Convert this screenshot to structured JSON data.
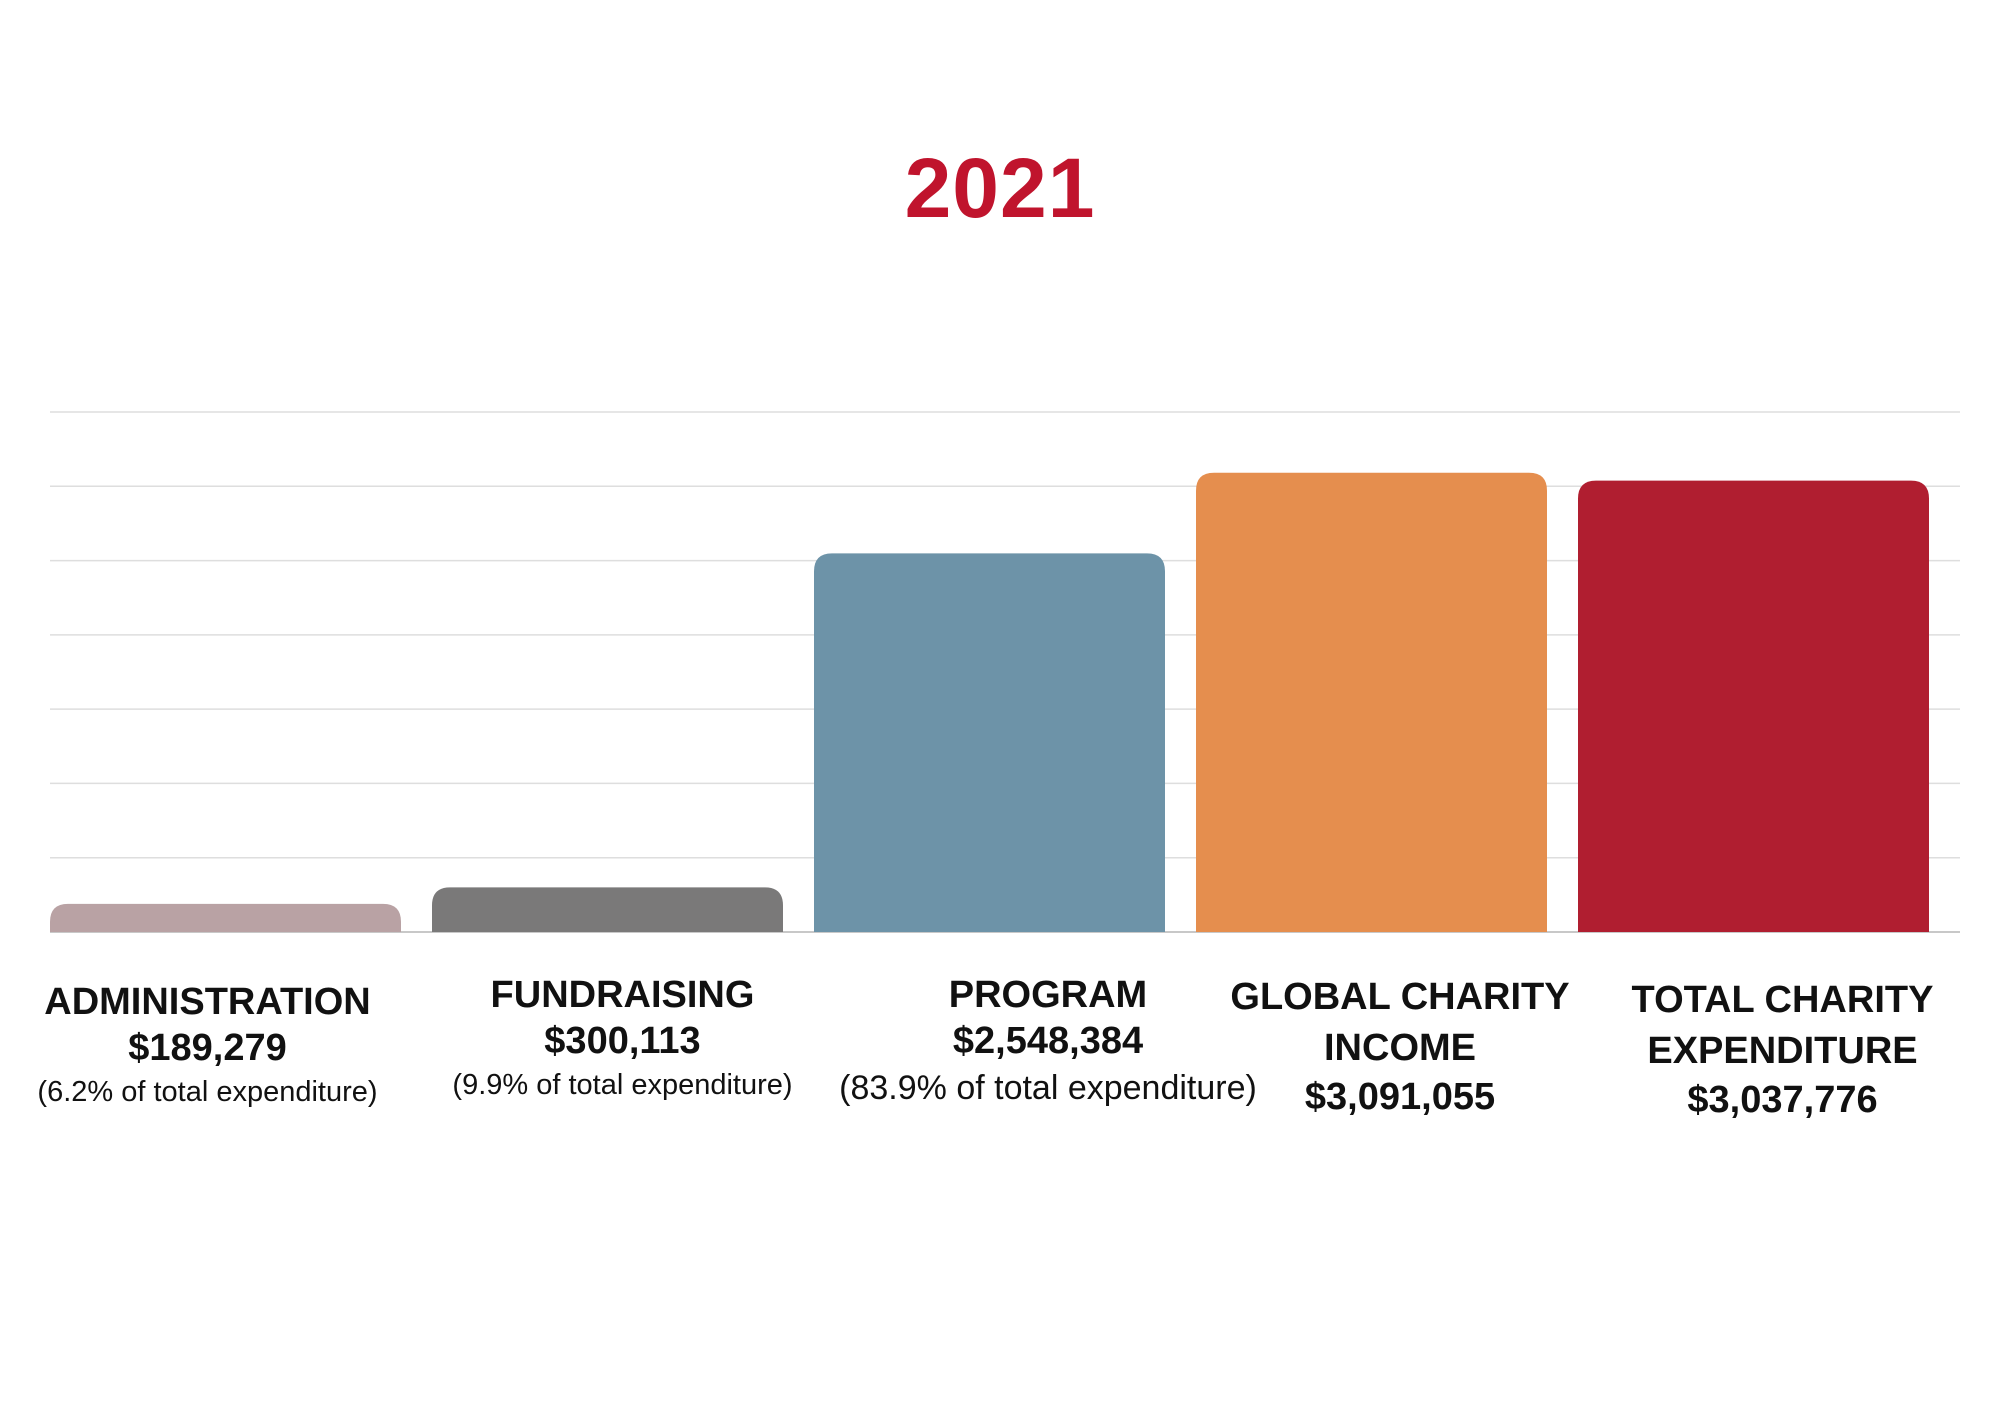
{
  "chart_data": {
    "type": "bar",
    "title": "2021",
    "title_color": "#c0142d",
    "xlabel": "",
    "ylabel": "",
    "ylim": [
      0,
      3500000
    ],
    "grid": true,
    "categories": [
      "ADMINISTRATION",
      "FUNDRAISING",
      "PROGRAM",
      "GLOBAL CHARITY INCOME",
      "TOTAL CHARITY EXPENDITURE"
    ],
    "values": [
      189279,
      300113,
      2548384,
      3091055,
      3037776
    ],
    "bar_colors": [
      "#b9a2a4",
      "#7a7979",
      "#6d93a8",
      "#e58e4e",
      "#b01e30"
    ],
    "labels": [
      {
        "name": "ADMINISTRATION",
        "value": "$189,279",
        "note": "(6.2% of total expenditure)"
      },
      {
        "name": "FUNDRAISING",
        "value": "$300,113",
        "note": "(9.9% of total expenditure)"
      },
      {
        "name": "PROGRAM",
        "value": "$2,548,384",
        "note": "(83.9% of total expenditure)"
      },
      {
        "name": "GLOBAL CHARITY INCOME",
        "value": "$3,091,055",
        "note": ""
      },
      {
        "name": "TOTAL CHARITY EXPENDITURE",
        "value": "$3,037,776",
        "note": ""
      }
    ]
  }
}
